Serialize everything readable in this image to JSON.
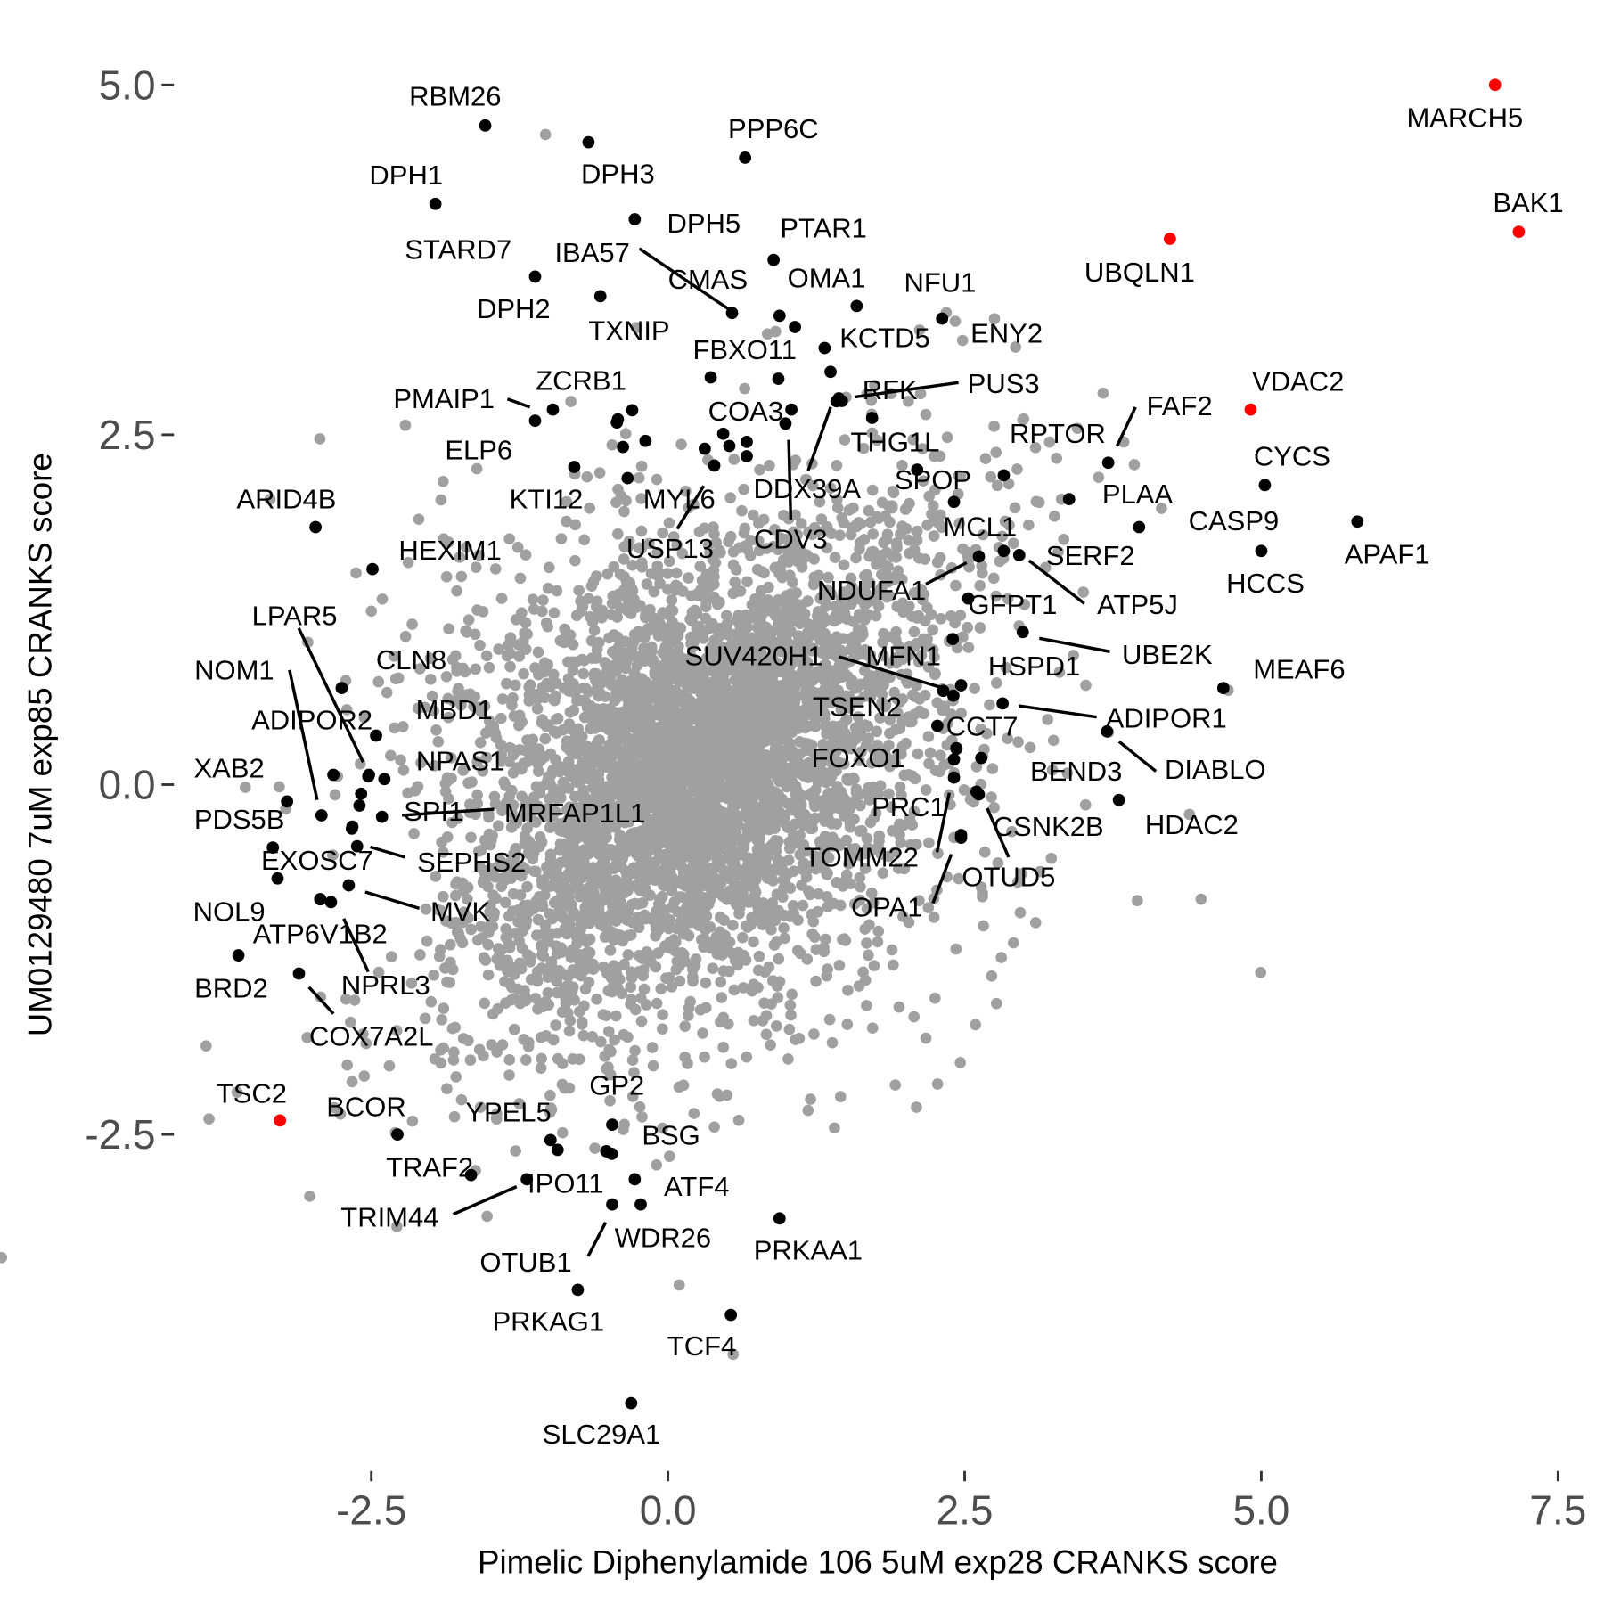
{
  "chart_data": {
    "type": "scatter",
    "title": "",
    "xlabel": "Pimelic Diphenylamide 106 5uM exp28 CRANKS score",
    "ylabel": "UM0129480 7uM exp85 CRANKS score",
    "xlim": [
      -3.5,
      7.6
    ],
    "ylim": [
      -4.8,
      5.2
    ],
    "xticks": [
      "-2.5",
      "0.0",
      "2.5",
      "5.0",
      "7.5"
    ],
    "yticks": [
      "-2.5",
      "0.0",
      "2.5",
      "5.0"
    ],
    "grid": false,
    "colors": {
      "background_points": "#a0a0a0",
      "labeled": "#000000",
      "highlight": "#ff0000"
    },
    "highlighted": [
      {
        "name": "MARCH5",
        "x": 6.97,
        "y": 5.0
      },
      {
        "name": "BAK1",
        "x": 7.17,
        "y": 3.95
      },
      {
        "name": "UBQLN1",
        "x": 4.23,
        "y": 3.9
      },
      {
        "name": "VDAC2",
        "x": 4.91,
        "y": 2.68
      },
      {
        "name": "TSC2",
        "x": -3.27,
        "y": -2.4
      }
    ],
    "labeled": [
      {
        "name": "RBM26",
        "x": -1.54,
        "y": 4.71
      },
      {
        "name": "DPH3",
        "x": -0.67,
        "y": 4.59
      },
      {
        "name": "PPP6C",
        "x": 0.65,
        "y": 4.48
      },
      {
        "name": "DPH1",
        "x": -1.96,
        "y": 4.15
      },
      {
        "name": "DPH5",
        "x": -0.28,
        "y": 4.04
      },
      {
        "name": "PTAR1",
        "x": 0.89,
        "y": 3.75
      },
      {
        "name": "STARD7",
        "x": -1.12,
        "y": 3.63
      },
      {
        "name": "DPH2",
        "x": -0.57,
        "y": 3.49
      },
      {
        "name": "IBA57",
        "x": 0.54,
        "y": 3.37
      },
      {
        "name": "CMAS",
        "x": 0.94,
        "y": 3.35
      },
      {
        "name": "OMA1",
        "x": 1.07,
        "y": 3.27
      },
      {
        "name": "NFU1",
        "x": 1.59,
        "y": 3.42
      },
      {
        "name": "ENY2",
        "x": 2.31,
        "y": 3.33
      },
      {
        "name": "TXNIP",
        "x": 0.36,
        "y": 2.91
      },
      {
        "name": "FBXO11",
        "x": 0.93,
        "y": 2.9
      },
      {
        "name": "KCTD5",
        "x": 1.32,
        "y": 3.12
      },
      {
        "name": "PMAIP1",
        "x": -1.12,
        "y": 2.6
      },
      {
        "name": "ZCRB1",
        "x": -0.97,
        "y": 2.68
      },
      {
        "name": "RFK",
        "x": 1.44,
        "y": 2.76
      },
      {
        "name": "PUS3",
        "x": 1.42,
        "y": 2.74
      },
      {
        "name": "COA3",
        "x": 1.04,
        "y": 2.68
      },
      {
        "name": "THG1L",
        "x": 1.72,
        "y": 2.62
      },
      {
        "name": "ELP6",
        "x": -0.79,
        "y": 2.27
      },
      {
        "name": "DDX39A",
        "x": 1.37,
        "y": 2.95
      },
      {
        "name": "SPOP",
        "x": 2.1,
        "y": 2.25
      },
      {
        "name": "KTI12",
        "x": -0.34,
        "y": 2.19
      },
      {
        "name": "MYL6",
        "x": 0.39,
        "y": 2.28
      },
      {
        "name": "USP13",
        "x": 0.31,
        "y": 2.4
      },
      {
        "name": "CDV3",
        "x": 0.99,
        "y": 2.58
      },
      {
        "name": "MCL1",
        "x": 2.41,
        "y": 2.02
      },
      {
        "name": "RPTOR",
        "x": 2.83,
        "y": 2.21
      },
      {
        "name": "FAF2",
        "x": 3.71,
        "y": 2.3
      },
      {
        "name": "PLAA",
        "x": 3.38,
        "y": 2.04
      },
      {
        "name": "CYCS",
        "x": 5.03,
        "y": 2.14
      },
      {
        "name": "CASP9",
        "x": 3.97,
        "y": 1.84
      },
      {
        "name": "APAF1",
        "x": 5.81,
        "y": 1.88
      },
      {
        "name": "HCCS",
        "x": 5.0,
        "y": 1.67
      },
      {
        "name": "SERF2",
        "x": 2.83,
        "y": 1.67
      },
      {
        "name": "ATP5J",
        "x": 2.96,
        "y": 1.64
      },
      {
        "name": "NDUFA1",
        "x": 2.62,
        "y": 1.63
      },
      {
        "name": "GFPT1",
        "x": 2.53,
        "y": 1.33
      },
      {
        "name": "ARID4B",
        "x": -2.97,
        "y": 1.84
      },
      {
        "name": "HEXIM1",
        "x": -2.49,
        "y": 1.54
      },
      {
        "name": "UBE2K",
        "x": 2.99,
        "y": 1.09
      },
      {
        "name": "HSPD1",
        "x": 2.4,
        "y": 1.04
      },
      {
        "name": "SUV420H1",
        "x": 2.32,
        "y": 0.67
      },
      {
        "name": "MFN1",
        "x": 2.47,
        "y": 0.71
      },
      {
        "name": "MEAF6",
        "x": 4.68,
        "y": 0.69
      },
      {
        "name": "LPAR5",
        "x": -2.52,
        "y": 0.07
      },
      {
        "name": "CLN8",
        "x": -2.75,
        "y": 0.69
      },
      {
        "name": "NOM1",
        "x": -2.92,
        "y": -0.22
      },
      {
        "name": "TSEN2",
        "x": 2.27,
        "y": 0.42
      },
      {
        "name": "ADIPOR1",
        "x": 2.82,
        "y": 0.58
      },
      {
        "name": "ADIPOR2",
        "x": -2.82,
        "y": 0.07
      },
      {
        "name": "MBD1",
        "x": -2.46,
        "y": 0.35
      },
      {
        "name": "NPAS1",
        "x": -2.39,
        "y": 0.04
      },
      {
        "name": "CCT7",
        "x": 2.43,
        "y": 0.26
      },
      {
        "name": "DIABLO",
        "x": 3.7,
        "y": 0.38
      },
      {
        "name": "FOXO1",
        "x": 2.41,
        "y": 0.18
      },
      {
        "name": "BEND3",
        "x": 2.64,
        "y": 0.19
      },
      {
        "name": "XAB2",
        "x": -3.21,
        "y": -0.12
      },
      {
        "name": "HDAC2",
        "x": 3.8,
        "y": -0.11
      },
      {
        "name": "PRC1",
        "x": 2.41,
        "y": 0.05
      },
      {
        "name": "CSNK2B",
        "x": 2.62,
        "y": -0.07
      },
      {
        "name": "PDS5B",
        "x": -3.33,
        "y": -0.45
      },
      {
        "name": "SPI1",
        "x": -2.6,
        "y": -0.15
      },
      {
        "name": "MRFAP1L1",
        "x": -2.41,
        "y": -0.23
      },
      {
        "name": "SEPHS2",
        "x": -2.62,
        "y": -0.44
      },
      {
        "name": "EXOSC7",
        "x": -2.66,
        "y": -0.3
      },
      {
        "name": "TOMM22",
        "x": 2.47,
        "y": -0.36
      },
      {
        "name": "OTUD5",
        "x": 2.6,
        "y": -0.05
      },
      {
        "name": "OPA1",
        "x": 2.47,
        "y": -0.38
      },
      {
        "name": "NOL9",
        "x": -3.29,
        "y": -0.67
      },
      {
        "name": "MVK",
        "x": -2.69,
        "y": -0.72
      },
      {
        "name": "ATP6V1B2",
        "x": -2.84,
        "y": -0.84
      },
      {
        "name": "NPRL3",
        "x": -2.93,
        "y": -0.82
      },
      {
        "name": "BRD2",
        "x": -3.62,
        "y": -1.22
      },
      {
        "name": "COX7A2L",
        "x": -3.11,
        "y": -1.35
      },
      {
        "name": "BCOR",
        "x": -2.28,
        "y": -2.5
      },
      {
        "name": "YPEL5",
        "x": -0.99,
        "y": -2.54
      },
      {
        "name": "GP2",
        "x": -0.47,
        "y": -2.43
      },
      {
        "name": "BSG",
        "x": -0.52,
        "y": -2.62
      },
      {
        "name": "TRAF2",
        "x": -1.66,
        "y": -2.79
      },
      {
        "name": "IPO11",
        "x": -1.19,
        "y": -2.82
      },
      {
        "name": "ATF4",
        "x": -0.28,
        "y": -2.82
      },
      {
        "name": "TRIM44",
        "x": -0.93,
        "y": -2.61
      },
      {
        "name": "WDR26",
        "x": -0.23,
        "y": -3.0
      },
      {
        "name": "OTUB1",
        "x": -0.47,
        "y": -3.0
      },
      {
        "name": "PRKAA1",
        "x": 0.94,
        "y": -3.1
      },
      {
        "name": "PRKAG1",
        "x": -0.76,
        "y": -3.61
      },
      {
        "name": "TCF4",
        "x": 0.53,
        "y": -3.79
      },
      {
        "name": "SLC29A1",
        "x": -0.31,
        "y": -4.42
      }
    ]
  }
}
